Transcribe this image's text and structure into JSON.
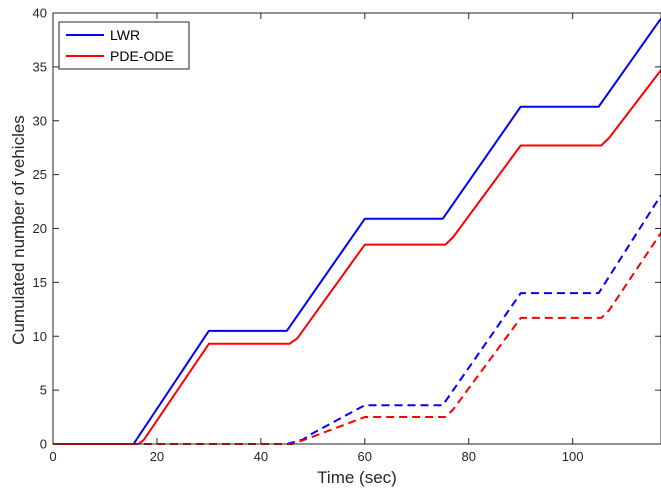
{
  "chart_data": {
    "type": "line",
    "xlabel": "Time (sec)",
    "ylabel": "Cumulated number of vehicles",
    "xlim": [
      0,
      117
    ],
    "ylim": [
      0,
      40
    ],
    "xticks": [
      0,
      20,
      40,
      60,
      80,
      100
    ],
    "yticks": [
      0,
      5,
      10,
      15,
      20,
      25,
      30,
      35,
      40
    ],
    "grid": false,
    "legend_position": "top-left",
    "legend": [
      {
        "label": "LWR",
        "color": "#0000ff"
      },
      {
        "label": "PDE-ODE",
        "color": "#ff0000"
      }
    ],
    "series": [
      {
        "name": "LWR",
        "color": "#0000ff",
        "style": "solid",
        "points": [
          [
            0,
            0
          ],
          [
            15.5,
            0
          ],
          [
            30,
            10.5
          ],
          [
            45,
            10.5
          ],
          [
            60,
            20.9
          ],
          [
            75,
            20.9
          ],
          [
            90,
            31.3
          ],
          [
            105,
            31.3
          ],
          [
            117,
            39.5
          ]
        ]
      },
      {
        "name": "PDE-ODE",
        "color": "#ff0000",
        "style": "solid",
        "points": [
          [
            0,
            0
          ],
          [
            16.5,
            0
          ],
          [
            17.5,
            0.4
          ],
          [
            30,
            9.3
          ],
          [
            45.5,
            9.3
          ],
          [
            47,
            9.8
          ],
          [
            60,
            18.5
          ],
          [
            75.5,
            18.5
          ],
          [
            77,
            19.2
          ],
          [
            90,
            27.7
          ],
          [
            105.5,
            27.7
          ],
          [
            107,
            28.4
          ],
          [
            117,
            34.7
          ]
        ]
      },
      {
        "name": "LWR",
        "color": "#0000ff",
        "style": "dashed",
        "points": [
          [
            0,
            0
          ],
          [
            45,
            0
          ],
          [
            48,
            0.4
          ],
          [
            50,
            1.0
          ],
          [
            60,
            3.6
          ],
          [
            75,
            3.6
          ],
          [
            90,
            14.0
          ],
          [
            105,
            14.0
          ],
          [
            117,
            23.1
          ]
        ]
      },
      {
        "name": "PDE-ODE",
        "color": "#ff0000",
        "style": "dashed",
        "points": [
          [
            0,
            0
          ],
          [
            46,
            0
          ],
          [
            49,
            0.5
          ],
          [
            60,
            2.5
          ],
          [
            75.5,
            2.5
          ],
          [
            77,
            3.2
          ],
          [
            90,
            11.7
          ],
          [
            105.5,
            11.7
          ],
          [
            107,
            12.4
          ],
          [
            117,
            19.6
          ]
        ]
      }
    ]
  }
}
